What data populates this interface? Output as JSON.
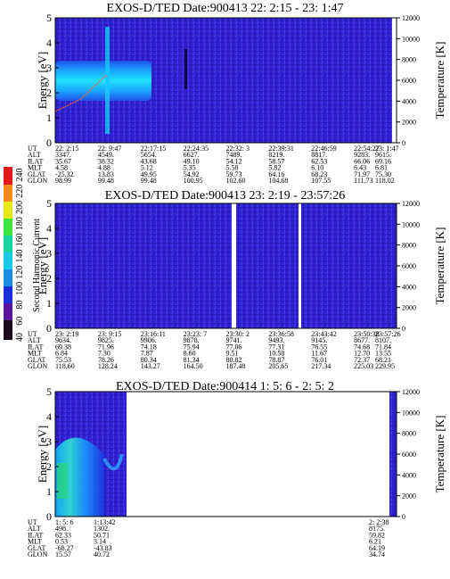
{
  "figure": {
    "colorbar": {
      "label": "Second Harmonic Current",
      "ticks": [
        "40",
        "60",
        "80",
        "100",
        "120",
        "140",
        "160",
        "180",
        "200",
        "220",
        "240"
      ]
    },
    "panels": [
      {
        "title": "EXOS-D/TED   Date:900413  22: 2:15 - 23: 1:47",
        "table": [
          {
            "label": "UT",
            "values": [
              "22: 2:15",
              "22: 9:47",
              "22:17:15",
              "22:24:35",
              "22:32: 3",
              "22:39:31",
              "22:46:59",
              "22:54:27",
              "23: 1:47"
            ]
          },
          {
            "label": "ALT",
            "values": [
              "3347.",
              "4549.",
              "5654.",
              "6627.",
              "7489.",
              "8219.",
              "8817.",
              "9283.",
              "9615."
            ]
          },
          {
            "label": "ILAT",
            "values": [
              "35.67",
              "38.32",
              "43.68",
              "49.10",
              "54.12",
              "58.57",
              "62.53",
              "66.06",
              "69.16"
            ]
          },
          {
            "label": "MLT",
            "values": [
              "4.58",
              "4.88",
              "5.12",
              "5.35",
              "5.58",
              "5.82",
              "6.10",
              "6.43",
              "6.81"
            ]
          },
          {
            "label": "GLAT",
            "values": [
              "-25.32",
              "13.83",
              "49.95",
              "54.92",
              "59.73",
              "64.16",
              "68.23",
              "71.97",
              "75.30"
            ]
          },
          {
            "label": "GLON",
            "values": [
              "98.99",
              "99.48",
              "99.48",
              "100.95",
              "102.60",
              "104.68",
              "107.55",
              "111.73",
              "118.02"
            ]
          }
        ]
      },
      {
        "title": "EXOS-D/TED   Date:900413  23: 2:19 - 23:57:26",
        "table": [
          {
            "label": "UT",
            "values": [
              "23: 2:19",
              "23: 9:15",
              "23:16:11",
              "23:23: 7",
              "23:30: 2",
              "23:36:58",
              "23:43:42",
              "23:50:38",
              "23:57:26"
            ]
          },
          {
            "label": "ALT",
            "values": [
              "9634.",
              "9825.",
              "9906.",
              "9878.",
              "9741.",
              "9493.",
              "9145.",
              "8677.",
              "8107."
            ]
          },
          {
            "label": "ILAT",
            "values": [
              "69.38",
              "71.96",
              "74.18",
              "75.94",
              "77.06",
              "77.31",
              "76.55",
              "74.68",
              "71.84"
            ]
          },
          {
            "label": "MLT",
            "values": [
              "6.84",
              "7.30",
              "7.87",
              "8.60",
              "9.51",
              "10.58",
              "11.67",
              "12.70",
              "13.55"
            ]
          },
          {
            "label": "GLAT",
            "values": [
              "75.53",
              "78.26",
              "80.34",
              "81.34",
              "80.82",
              "78.87",
              "76.01",
              "72.37",
              "68.21"
            ]
          },
          {
            "label": "GLON",
            "values": [
              "118.60",
              "128.24",
              "143.27",
              "164.50",
              "187.48",
              "205.65",
              "217.34",
              "225.03",
              "229.95"
            ]
          }
        ]
      },
      {
        "title": "EXOS-D/TED   Date:900414   1: 5: 6 - 2: 5: 2",
        "table": [
          {
            "label": "UT",
            "values": [
              "1: 5: 6",
              "1:13:42",
              "2: 2:38"
            ]
          },
          {
            "label": "ALT",
            "values": [
              "498.",
              "1302.",
              "8175."
            ]
          },
          {
            "label": "ILAT",
            "values": [
              "62.33",
              "50.71",
              "59.82"
            ]
          },
          {
            "label": "MLT",
            "values": [
              "0.53",
              "3.14",
              "6.21"
            ]
          },
          {
            "label": "GLAT",
            "values": [
              "-68.27",
              "-43.83",
              "64.19"
            ]
          },
          {
            "label": "GLON",
            "values": [
              "15.57",
              "40.72",
              "34.74"
            ]
          }
        ]
      }
    ]
  },
  "chart_data": [
    {
      "type": "heatmap",
      "title": "EXOS-D/TED   Date:900413  22: 2:15 - 23: 1:47",
      "ylabel": "Energy [eV]",
      "ylim": [
        0,
        5
      ],
      "yticks": [
        "0",
        "1",
        "2",
        "3",
        "4",
        "5"
      ],
      "y2label": "Temperature [K]",
      "y2lim": [
        0,
        12000
      ],
      "y2ticks": [
        "0",
        "2000",
        "4000",
        "6000",
        "8000",
        "10000",
        "12000"
      ],
      "x": [
        "22: 2:15",
        "22: 9:47",
        "22:17:15",
        "22:24:35",
        "22:32: 3",
        "22:39:31",
        "22:46:59",
        "22:54:27",
        "23: 1:47"
      ],
      "temperature_series": {
        "x": [
          "22: 2:15",
          "22: 9:47",
          "22:17:15"
        ],
        "values": [
          3000,
          4200,
          6500
        ]
      }
    },
    {
      "type": "heatmap",
      "title": "EXOS-D/TED   Date:900413  23: 2:19 - 23:57:26",
      "ylabel": "Energy [eV]",
      "ylim": [
        0,
        5
      ],
      "yticks": [
        "0",
        "1",
        "2",
        "3",
        "4",
        "5"
      ],
      "y2label": "Temperature [K]",
      "y2lim": [
        0,
        12000
      ],
      "y2ticks": [
        "0",
        "2000",
        "4000",
        "6000",
        "8000",
        "10000",
        "12000"
      ],
      "x": [
        "23: 2:19",
        "23: 9:15",
        "23:16:11",
        "23:23: 7",
        "23:30: 2",
        "23:36:58",
        "23:43:42",
        "23:50:38",
        "23:57:26"
      ]
    },
    {
      "type": "heatmap",
      "title": "EXOS-D/TED   Date:900414   1: 5: 6 - 2: 5: 2",
      "ylabel": "Energy [eV]",
      "ylim": [
        0,
        5
      ],
      "yticks": [
        "0",
        "1",
        "2",
        "3",
        "4",
        "5"
      ],
      "y2label": "Temperature [K]",
      "y2lim": [
        0,
        12000
      ],
      "y2ticks": [
        "0",
        "2000",
        "4000",
        "6000",
        "8000",
        "10000",
        "12000"
      ],
      "x": [
        "1: 5: 6",
        "1:13:42",
        "2: 2:38"
      ]
    }
  ]
}
